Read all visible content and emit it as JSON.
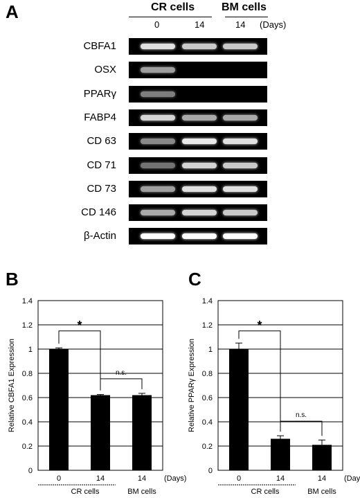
{
  "figure": {
    "panel_a": {
      "letter": "A",
      "groups": [
        {
          "label": "CR cells"
        },
        {
          "label": "BM cells"
        }
      ],
      "days": [
        "0",
        "14",
        "14"
      ],
      "days_unit": "(Days)",
      "genes": [
        {
          "name": "CBFA1",
          "intensity": [
            0.85,
            0.75,
            0.75
          ]
        },
        {
          "name": "OSX",
          "intensity": [
            0.55,
            0.0,
            0.0
          ]
        },
        {
          "name": "PPARγ",
          "intensity": [
            0.4,
            0.0,
            0.0
          ]
        },
        {
          "name": "FABP4",
          "intensity": [
            0.8,
            0.6,
            0.6
          ]
        },
        {
          "name": "CD 63",
          "intensity": [
            0.45,
            0.9,
            0.85
          ]
        },
        {
          "name": "CD 71",
          "intensity": [
            0.35,
            0.8,
            0.75
          ]
        },
        {
          "name": "CD 73",
          "intensity": [
            0.55,
            0.85,
            0.85
          ]
        },
        {
          "name": "CD 146",
          "intensity": [
            0.6,
            0.8,
            0.75
          ]
        },
        {
          "name": "β-Actin",
          "intensity": [
            1.0,
            1.0,
            1.0
          ]
        }
      ]
    },
    "panel_b": {
      "letter": "B"
    },
    "panel_c": {
      "letter": "C"
    }
  },
  "chart_data": [
    {
      "type": "bar",
      "categories": [
        "0",
        "14",
        "14"
      ],
      "x_unit": "(Days)",
      "group_labels": [
        "CR cells",
        "BM cells"
      ],
      "values": [
        1.0,
        0.62,
        0.62
      ],
      "errors": [
        0.01,
        0.005,
        0.015
      ],
      "ylabel": "Relative CBFA1  Expression",
      "ylim": [
        0,
        1.4
      ],
      "yticks": [
        "0",
        "0.2",
        "0.4",
        "0.6",
        "0.8",
        "1",
        "1.2",
        "1.4"
      ],
      "grid": true,
      "annotations": [
        {
          "text": "*",
          "from": 0,
          "to": 1
        },
        {
          "text": "n.s.",
          "from": 1,
          "to": 2
        }
      ]
    },
    {
      "type": "bar",
      "categories": [
        "0",
        "14",
        "14"
      ],
      "x_unit": "(Days)",
      "group_labels": [
        "CR cells",
        "BM cells"
      ],
      "values": [
        1.0,
        0.26,
        0.21
      ],
      "errors": [
        0.05,
        0.025,
        0.04
      ],
      "ylabel": "Relative PPARγ  Expression",
      "ylim": [
        0,
        1.4
      ],
      "yticks": [
        "0",
        "0.2",
        "0.4",
        "0.6",
        "0.8",
        "1",
        "1.2",
        "1.4"
      ],
      "grid": true,
      "annotations": [
        {
          "text": "*",
          "from": 0,
          "to": 1
        },
        {
          "text": "n.s.",
          "from": 1,
          "to": 2
        }
      ]
    }
  ]
}
